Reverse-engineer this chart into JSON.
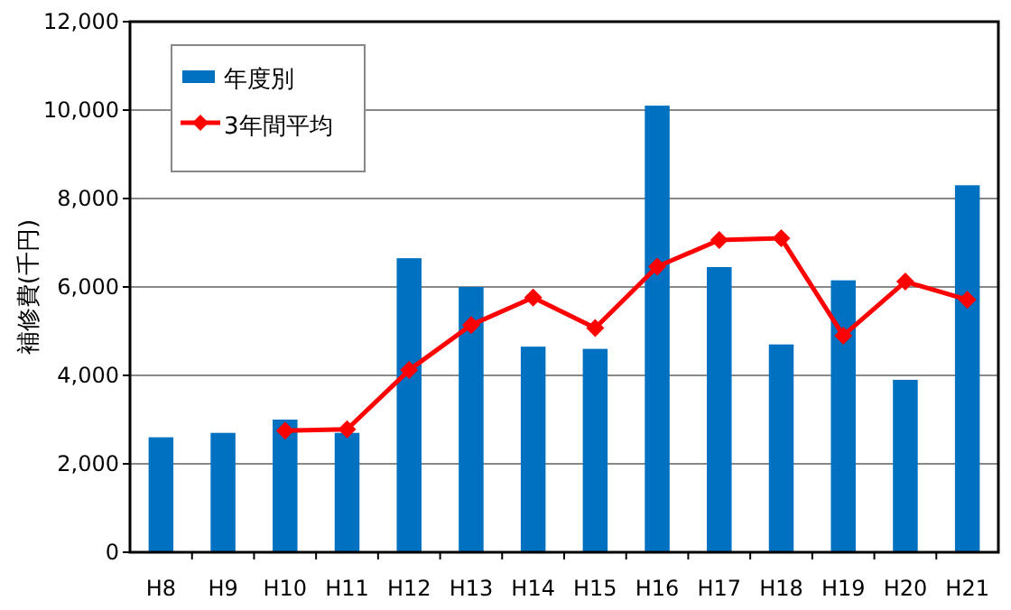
{
  "chart_data": {
    "type": "bar",
    "ylabel": "補修費(千円)",
    "categories": [
      "H8",
      "H9",
      "H10",
      "H11",
      "H12",
      "H13",
      "H14",
      "H15",
      "H16",
      "H17",
      "H18",
      "H19",
      "H20",
      "H21"
    ],
    "series": [
      {
        "name": "年度別",
        "color": "#0070c0",
        "values": [
          2600,
          2700,
          3000,
          2700,
          6650,
          6000,
          4650,
          4600,
          10100,
          6450,
          4700,
          6150,
          3900,
          8300
        ]
      },
      {
        "name": "3年間平均",
        "type": "line",
        "color": "#ff0000",
        "marker": "diamond",
        "values": [
          null,
          null,
          2750,
          2780,
          4120,
          5140,
          5760,
          5070,
          6460,
          7060,
          7100,
          4900,
          6120,
          5710
        ]
      }
    ],
    "ylim": [
      0,
      12000
    ],
    "yticks": [
      {
        "value": 0,
        "label": "0"
      },
      {
        "value": 2000,
        "label": "2,000"
      },
      {
        "value": 4000,
        "label": "4,000"
      },
      {
        "value": 6000,
        "label": "6,000"
      },
      {
        "value": 8000,
        "label": "8,000"
      },
      {
        "value": 10000,
        "label": "10,000"
      },
      {
        "value": 12000,
        "label": "12,000"
      }
    ],
    "grid": "y",
    "legend": "top left"
  }
}
